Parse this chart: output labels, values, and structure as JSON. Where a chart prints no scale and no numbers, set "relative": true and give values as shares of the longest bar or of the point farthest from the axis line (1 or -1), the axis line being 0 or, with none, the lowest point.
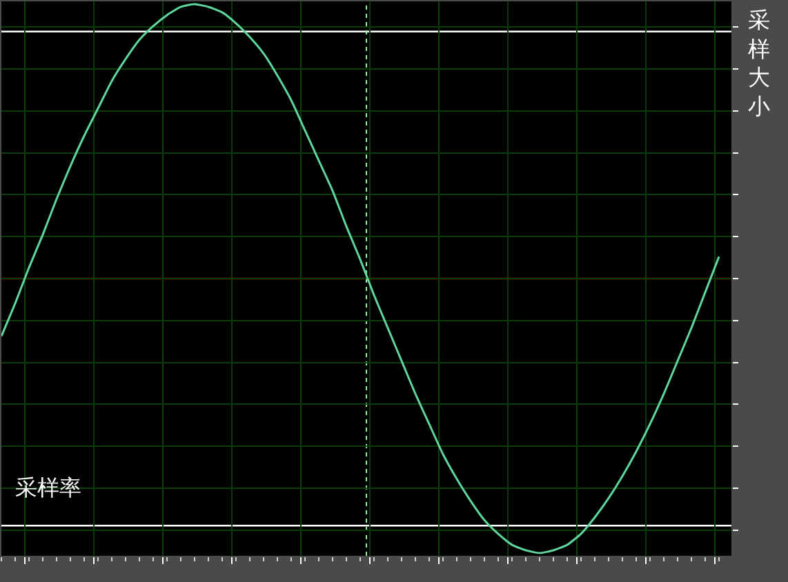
{
  "chart_data": {
    "type": "line",
    "relative": true,
    "xlabel": "采样率",
    "ylabel": "采样大小",
    "grid": true,
    "tick_labels": false,
    "legend": false,
    "marker": "none",
    "line_style": "solid",
    "categories": [
      null,
      null,
      null,
      null,
      null,
      null,
      null,
      null,
      null,
      null,
      null,
      null,
      null,
      null,
      null,
      null,
      null,
      null,
      null,
      null,
      null,
      null,
      null,
      null,
      null,
      null,
      null,
      null,
      null,
      null,
      null,
      null,
      null,
      null,
      null,
      null,
      null,
      null,
      null,
      null,
      null,
      null,
      null,
      null,
      null,
      null,
      null,
      null,
      null,
      null,
      null,
      null,
      null
    ],
    "series": [
      {
        "color": "#5ed69c",
        "values": [
          -0.21,
          -0.09,
          0.04,
          0.16,
          0.29,
          0.41,
          0.52,
          0.62,
          0.72,
          0.8,
          0.87,
          0.92,
          0.96,
          0.99,
          1.0,
          0.99,
          0.97,
          0.93,
          0.88,
          0.82,
          0.74,
          0.65,
          0.54,
          0.43,
          0.32,
          0.19,
          0.07,
          -0.06,
          -0.18,
          -0.3,
          -0.42,
          -0.53,
          -0.64,
          -0.73,
          -0.81,
          -0.88,
          -0.93,
          -0.97,
          -0.99,
          -1.0,
          -0.99,
          -0.97,
          -0.93,
          -0.87,
          -0.8,
          -0.72,
          -0.63,
          -0.53,
          -0.42,
          -0.3,
          -0.18,
          -0.05,
          0.08
        ]
      }
    ],
    "ref_lines": [
      {
        "axis": "y",
        "value": 0.9,
        "color": "#ffffff",
        "line_style": "solid"
      },
      {
        "axis": "y",
        "value": 0,
        "color": "#b00000",
        "line_style": "solid"
      },
      {
        "axis": "y",
        "value": -0.9,
        "color": "#ffffff",
        "line_style": "solid"
      }
    ]
  }
}
